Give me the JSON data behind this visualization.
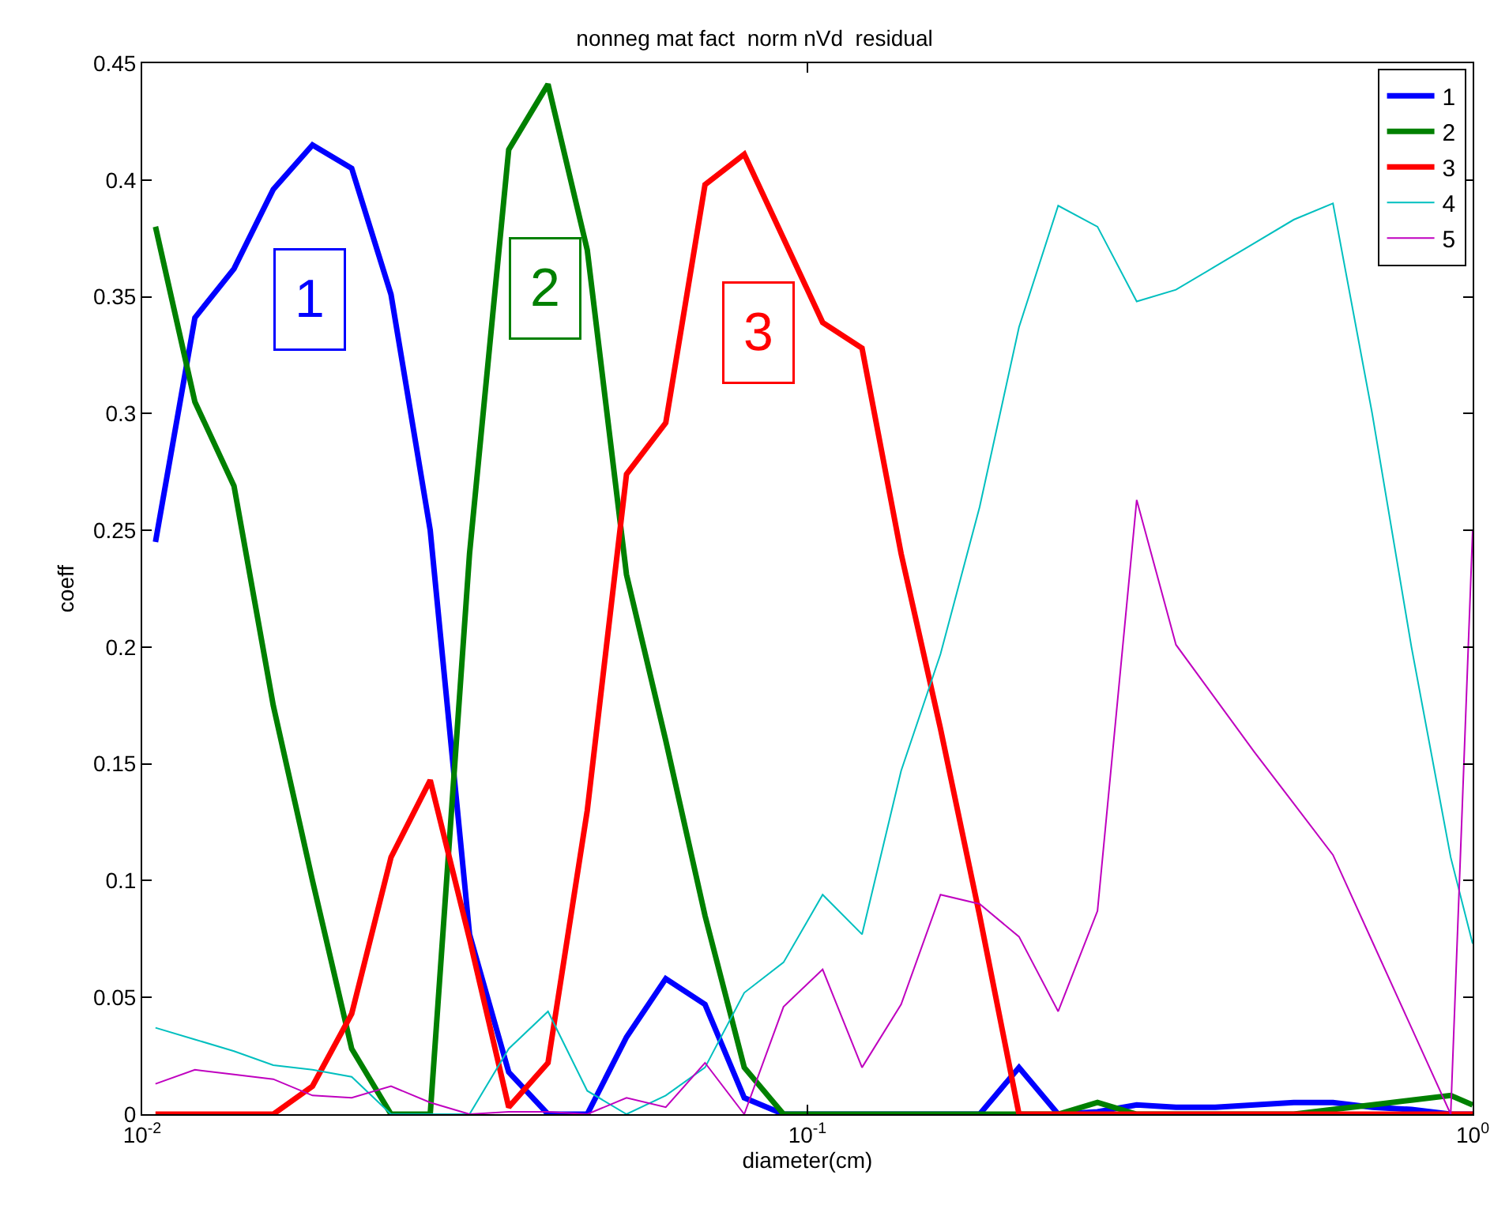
{
  "chart_data": {
    "type": "line",
    "title": "nonneg mat fact  norm nVd  residual",
    "xlabel": "diameter(cm)",
    "ylabel": "coeff",
    "log": "x",
    "x": [
      0.01047,
      0.012,
      0.01374,
      0.01574,
      0.01803,
      0.02065,
      0.02366,
      0.0271,
      0.03105,
      0.03556,
      0.04074,
      0.04667,
      0.05346,
      0.06124,
      0.07015,
      0.08036,
      0.09206,
      0.1054,
      0.1208,
      0.1383,
      0.1585,
      0.1815,
      0.208,
      0.2382,
      0.2729,
      0.3126,
      0.3581,
      0.4102,
      0.4699,
      0.5383,
      0.6166,
      0.7063,
      0.8091,
      0.9268,
      1.0
    ],
    "series": [
      {
        "name": "1",
        "color": "#0000ff",
        "values": [
          0.245,
          0.341,
          0.362,
          0.396,
          0.415,
          0.405,
          0.351,
          0.25,
          0.077,
          0.018,
          0,
          0,
          0.033,
          0.058,
          0.047,
          0.007,
          0,
          0,
          0,
          0,
          0,
          0,
          0.02,
          0,
          0.001,
          0.004,
          0.003,
          0.003,
          0.004,
          0.005,
          0.005,
          0.003,
          0.002,
          0,
          0
        ]
      },
      {
        "name": "2",
        "color": "#008000",
        "values": [
          0.38,
          0.305,
          0.269,
          0.175,
          0.1,
          0.028,
          0,
          0,
          0.24,
          0.413,
          0.441,
          0.37,
          0.231,
          0.16,
          0.085,
          0.02,
          0,
          0,
          0,
          0,
          0,
          0,
          0,
          0,
          0.005,
          0,
          0,
          0,
          0,
          0,
          0.002,
          0.004,
          0.006,
          0.008,
          0.004
        ]
      },
      {
        "name": "3",
        "color": "#ff0000",
        "values": [
          0,
          0,
          0,
          0,
          0.012,
          0.043,
          0.11,
          0.143,
          0.075,
          0.003,
          0.022,
          0.13,
          0.274,
          0.296,
          0.398,
          0.411,
          0.375,
          0.339,
          0.328,
          0.24,
          0.165,
          0.085,
          0,
          0,
          0,
          0,
          0,
          0,
          0,
          0,
          0,
          0,
          0,
          0,
          0
        ]
      },
      {
        "name": "4",
        "color": "#00bfbf",
        "values": [
          0.037,
          0.032,
          0.027,
          0.021,
          0.019,
          0.016,
          0,
          0,
          0,
          0.028,
          0.044,
          0.01,
          0,
          0.008,
          0.02,
          0.052,
          0.065,
          0.094,
          0.077,
          0.147,
          0.197,
          0.26,
          0.337,
          0.389,
          0.38,
          0.348,
          0.353,
          0.363,
          0.373,
          0.383,
          0.39,
          0.3,
          0.2,
          0.11,
          0.073
        ]
      },
      {
        "name": "5",
        "color": "#bf00bf",
        "values": [
          0.013,
          0.019,
          0.017,
          0.015,
          0.008,
          0.007,
          0.012,
          0.005,
          0,
          0.001,
          0.001,
          0,
          0.007,
          0.003,
          0.022,
          0,
          0.046,
          0.062,
          0.02,
          0.047,
          0.094,
          0.09,
          0.076,
          0.044,
          0.087,
          0.263,
          0.201,
          0.178,
          0.155,
          0.133,
          0.111,
          0.074,
          0.037,
          0,
          0.25
        ]
      }
    ],
    "annotations": [
      "1",
      "2",
      "3"
    ],
    "xlim": [
      0.01,
      1
    ],
    "xticks": [
      {
        "value": 0.01,
        "label": "10$^{-2}$"
      },
      {
        "value": 0.1,
        "label": "10$^{-1}$"
      },
      {
        "value": 1,
        "label": "10$^{0}$"
      }
    ],
    "ylim": [
      0,
      0.45
    ],
    "yticks": [
      0,
      0.05,
      0.1,
      0.15,
      0.2,
      0.25,
      0.3,
      0.35,
      0.4,
      0.45
    ],
    "legend": "top right",
    "marker": "none",
    "line_style": "solid"
  }
}
